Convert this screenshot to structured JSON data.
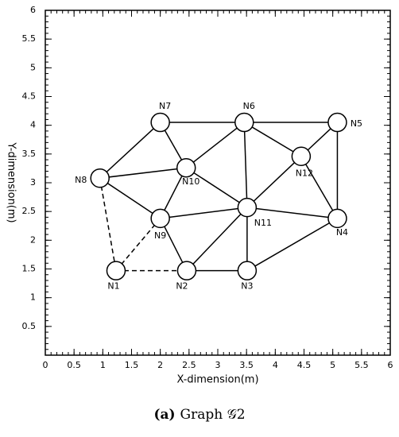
{
  "chart_data": {
    "type": "graph",
    "xlabel": "X-dimension(m)",
    "ylabel": "Y-dimension(m)",
    "caption_label": "(a)",
    "caption": "Graph 𝒢2",
    "xlim": [
      0,
      6
    ],
    "ylim": [
      0,
      6
    ],
    "xticks": [
      0,
      0.5,
      1,
      1.5,
      2,
      2.5,
      3,
      3.5,
      4,
      4.5,
      5,
      5.5,
      6
    ],
    "yticks": [
      0.5,
      1,
      1.5,
      2,
      2.5,
      3,
      3.5,
      4,
      4.5,
      5,
      5.5,
      6
    ],
    "minor_ticks_per_interval": 5,
    "nodes": [
      {
        "label": "N1",
        "x": 1.23,
        "y": 1.47
      },
      {
        "label": "N2",
        "x": 2.46,
        "y": 1.47
      },
      {
        "label": "N3",
        "x": 3.51,
        "y": 1.47
      },
      {
        "label": "N4",
        "x": 5.08,
        "y": 2.38
      },
      {
        "label": "N5",
        "x": 5.08,
        "y": 4.05
      },
      {
        "label": "N6",
        "x": 3.46,
        "y": 4.05
      },
      {
        "label": "N7",
        "x": 2.0,
        "y": 4.05
      },
      {
        "label": "N8",
        "x": 0.95,
        "y": 3.08
      },
      {
        "label": "N9",
        "x": 2.0,
        "y": 2.38
      },
      {
        "label": "N10",
        "x": 2.45,
        "y": 3.26
      },
      {
        "label": "N11",
        "x": 3.51,
        "y": 2.57
      },
      {
        "label": "N12",
        "x": 4.45,
        "y": 3.46
      }
    ],
    "edges": [
      [
        6,
        7
      ],
      [
        6,
        9
      ],
      [
        6,
        5
      ],
      [
        5,
        4
      ],
      [
        5,
        9
      ],
      [
        5,
        10
      ],
      [
        5,
        11
      ],
      [
        4,
        11
      ],
      [
        4,
        3
      ],
      [
        11,
        10
      ],
      [
        11,
        3
      ],
      [
        9,
        7
      ],
      [
        9,
        10
      ],
      [
        9,
        8
      ],
      [
        7,
        8
      ],
      [
        8,
        10
      ],
      [
        8,
        1
      ],
      [
        10,
        1
      ],
      [
        10,
        2
      ],
      [
        10,
        3
      ],
      [
        1,
        2
      ],
      [
        2,
        3
      ]
    ],
    "dashed_edges": [
      [
        7,
        0
      ],
      [
        8,
        0
      ],
      [
        0,
        1
      ]
    ]
  }
}
